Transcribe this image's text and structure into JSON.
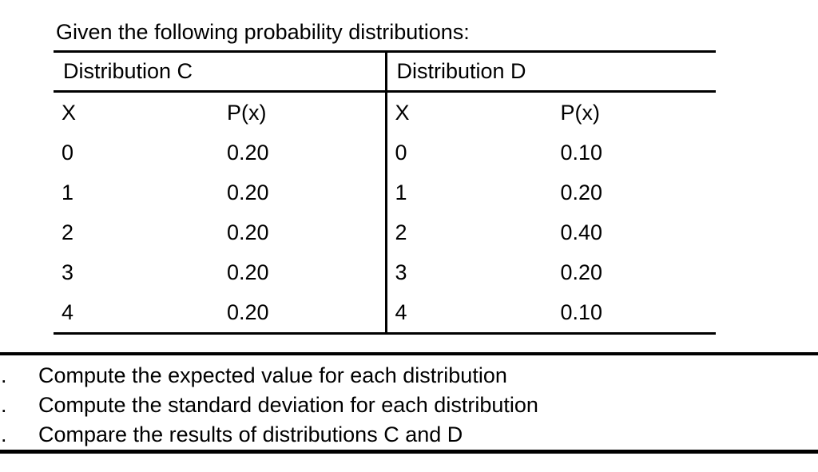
{
  "title": "Given the following probability distributions:",
  "table": {
    "sections": [
      {
        "name": "Distribution C",
        "col_x": "X",
        "col_p": "P(x)",
        "rows": [
          {
            "x": "0",
            "p": "0.20"
          },
          {
            "x": "1",
            "p": "0.20"
          },
          {
            "x": "2",
            "p": "0.20"
          },
          {
            "x": "3",
            "p": "0.20"
          },
          {
            "x": "4",
            "p": "0.20"
          }
        ]
      },
      {
        "name": "Distribution D",
        "col_x": "X",
        "col_p": "P(x)",
        "rows": [
          {
            "x": "0",
            "p": "0.10"
          },
          {
            "x": "1",
            "p": "0.20"
          },
          {
            "x": "2",
            "p": "0.40"
          },
          {
            "x": "3",
            "p": "0.20"
          },
          {
            "x": "4",
            "p": "0.10"
          }
        ]
      }
    ]
  },
  "tasks": {
    "marker": ".",
    "items": [
      "Compute the expected value for each distribution",
      "Compute the standard deviation for each distribution",
      "Compare the results of distributions C and D"
    ]
  },
  "colors": {
    "background": "#ffffff",
    "text": "#000000",
    "line": "#000000"
  }
}
